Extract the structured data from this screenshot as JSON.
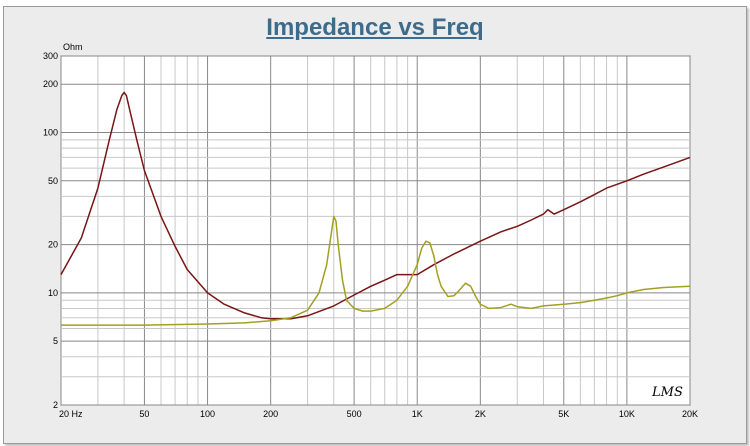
{
  "chart_data": {
    "type": "line",
    "title": "Impedance vs Freq",
    "ylabel": "Ohm",
    "x_scale": "log",
    "y_scale": "log",
    "xlim": [
      20,
      20000
    ],
    "ylim": [
      2,
      300
    ],
    "x_ticks": [
      20,
      50,
      100,
      200,
      500,
      1000,
      2000,
      5000,
      10000,
      20000
    ],
    "x_tick_labels": [
      "20 Hz",
      "50",
      "100",
      "200",
      "500",
      "1K",
      "2K",
      "5K",
      "10K",
      "20K"
    ],
    "y_ticks": [
      2,
      5,
      10,
      20,
      50,
      100,
      200,
      300
    ],
    "y_tick_labels": [
      "2",
      "5",
      "10",
      "20",
      "50",
      "100",
      "200",
      "300"
    ],
    "grid": true,
    "annotation": "LMS",
    "series": [
      {
        "color": "#7a1515",
        "x": [
          20,
          25,
          30,
          34,
          37,
          39,
          40,
          41,
          43,
          46,
          50,
          60,
          70,
          80,
          100,
          120,
          150,
          180,
          200,
          250,
          300,
          400,
          500,
          600,
          700,
          800,
          900,
          1000,
          1200,
          1500,
          2000,
          2500,
          3000,
          3500,
          4000,
          4200,
          4500,
          5000,
          6000,
          7000,
          8000,
          10000,
          12000,
          15000,
          20000
        ],
        "y": [
          13,
          22,
          45,
          90,
          140,
          170,
          178,
          170,
          130,
          90,
          58,
          30,
          19.5,
          14,
          10,
          8.5,
          7.5,
          7.0,
          6.9,
          6.9,
          7.2,
          8.3,
          9.7,
          11,
          12,
          13,
          13,
          13,
          15,
          17.5,
          21,
          24,
          26,
          28.5,
          31,
          33,
          31,
          33,
          37,
          41,
          45,
          50,
          55,
          61,
          70
        ]
      },
      {
        "color": "#a3a021",
        "x": [
          20,
          50,
          100,
          150,
          200,
          250,
          300,
          340,
          370,
          390,
          400,
          410,
          420,
          440,
          460,
          500,
          550,
          600,
          700,
          800,
          900,
          1000,
          1050,
          1100,
          1150,
          1200,
          1250,
          1300,
          1400,
          1500,
          1600,
          1700,
          1800,
          1900,
          2000,
          2200,
          2500,
          2800,
          3000,
          3500,
          4000,
          5000,
          6000,
          7000,
          8000,
          9000,
          10000,
          12000,
          15000,
          20000
        ],
        "y": [
          6.3,
          6.3,
          6.4,
          6.5,
          6.7,
          7.0,
          7.8,
          10,
          15,
          24,
          30,
          28,
          20,
          12,
          9,
          8,
          7.7,
          7.7,
          8,
          9,
          11,
          15,
          19,
          21,
          20.5,
          17,
          13,
          11,
          9.5,
          9.6,
          10.5,
          11.5,
          11,
          9.5,
          8.5,
          8,
          8.1,
          8.5,
          8.2,
          8,
          8.3,
          8.5,
          8.7,
          9,
          9.3,
          9.6,
          10,
          10.5,
          10.8,
          11
        ]
      }
    ]
  }
}
